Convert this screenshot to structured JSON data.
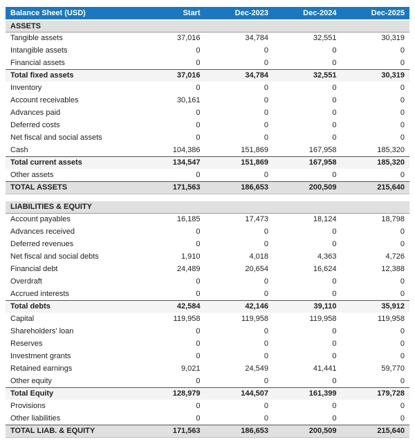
{
  "theme": {
    "header_bg": "#1a78c2",
    "header_text": "#ffffff",
    "section_bg": "#e0e0e0",
    "subtotal_bg": "#f4f4f4",
    "grandtotal_bg": "#e0e0e0",
    "body_text": "#212121",
    "total_border": "#555555"
  },
  "table": {
    "title": "Balance Sheet (USD)",
    "columns": [
      "Start",
      "Dec-2023",
      "Dec-2024",
      "Dec-2025"
    ],
    "sections": [
      {
        "name": "ASSETS",
        "rows": [
          {
            "label": "Tangible assets",
            "type": "item",
            "values": [
              "37,016",
              "34,784",
              "32,551",
              "30,319"
            ]
          },
          {
            "label": "Intangible assets",
            "type": "item",
            "values": [
              "0",
              "0",
              "0",
              "0"
            ]
          },
          {
            "label": "Financial assets",
            "type": "item",
            "values": [
              "0",
              "0",
              "0",
              "0"
            ]
          },
          {
            "label": "Total fixed assets",
            "type": "subtotal",
            "values": [
              "37,016",
              "34,784",
              "32,551",
              "30,319"
            ]
          },
          {
            "label": "Inventory",
            "type": "item",
            "values": [
              "0",
              "0",
              "0",
              "0"
            ]
          },
          {
            "label": "Account receivables",
            "type": "item",
            "values": [
              "30,161",
              "0",
              "0",
              "0"
            ]
          },
          {
            "label": "Advances paid",
            "type": "item",
            "values": [
              "0",
              "0",
              "0",
              "0"
            ]
          },
          {
            "label": "Deferred costs",
            "type": "item",
            "values": [
              "0",
              "0",
              "0",
              "0"
            ]
          },
          {
            "label": "Net fiscal and social assets",
            "type": "item",
            "values": [
              "0",
              "0",
              "0",
              "0"
            ]
          },
          {
            "label": "Cash",
            "type": "item",
            "values": [
              "104,386",
              "151,869",
              "167,958",
              "185,320"
            ]
          },
          {
            "label": "Total current assets",
            "type": "subtotal",
            "values": [
              "134,547",
              "151,869",
              "167,958",
              "185,320"
            ]
          },
          {
            "label": "Other assets",
            "type": "item",
            "values": [
              "0",
              "0",
              "0",
              "0"
            ]
          },
          {
            "label": "TOTAL ASSETS",
            "type": "grandtotal",
            "values": [
              "171,563",
              "186,653",
              "200,509",
              "215,640"
            ]
          }
        ]
      },
      {
        "name": "LIABILITIES & EQUITY",
        "rows": [
          {
            "label": "Account payables",
            "type": "item",
            "values": [
              "16,185",
              "17,473",
              "18,124",
              "18,798"
            ]
          },
          {
            "label": "Advances received",
            "type": "item",
            "values": [
              "0",
              "0",
              "0",
              "0"
            ]
          },
          {
            "label": "Deferred revenues",
            "type": "item",
            "values": [
              "0",
              "0",
              "0",
              "0"
            ]
          },
          {
            "label": "Net fiscal and social debts",
            "type": "item",
            "values": [
              "1,910",
              "4,018",
              "4,363",
              "4,726"
            ]
          },
          {
            "label": "Financial debt",
            "type": "item",
            "values": [
              "24,489",
              "20,654",
              "16,624",
              "12,388"
            ]
          },
          {
            "label": "Overdraft",
            "type": "item",
            "values": [
              "0",
              "0",
              "0",
              "0"
            ]
          },
          {
            "label": "Accrued interests",
            "type": "item",
            "values": [
              "0",
              "0",
              "0",
              "0"
            ]
          },
          {
            "label": "Total debts",
            "type": "subtotal",
            "values": [
              "42,584",
              "42,146",
              "39,110",
              "35,912"
            ]
          },
          {
            "label": "Capital",
            "type": "item",
            "values": [
              "119,958",
              "119,958",
              "119,958",
              "119,958"
            ]
          },
          {
            "label": "Shareholders' loan",
            "type": "item",
            "values": [
              "0",
              "0",
              "0",
              "0"
            ]
          },
          {
            "label": "Reserves",
            "type": "item",
            "values": [
              "0",
              "0",
              "0",
              "0"
            ]
          },
          {
            "label": "Investment grants",
            "type": "item",
            "values": [
              "0",
              "0",
              "0",
              "0"
            ]
          },
          {
            "label": "Retained earnings",
            "type": "item",
            "values": [
              "9,021",
              "24,549",
              "41,441",
              "59,770"
            ]
          },
          {
            "label": "Other equity",
            "type": "item",
            "values": [
              "0",
              "0",
              "0",
              "0"
            ]
          },
          {
            "label": "Total Equity",
            "type": "subtotal",
            "values": [
              "128,979",
              "144,507",
              "161,399",
              "179,728"
            ]
          },
          {
            "label": "Provisions",
            "type": "item",
            "values": [
              "0",
              "0",
              "0",
              "0"
            ]
          },
          {
            "label": "Other liabilities",
            "type": "item",
            "values": [
              "0",
              "0",
              "0",
              "0"
            ]
          },
          {
            "label": "TOTAL LIAB. & EQUITY",
            "type": "grandtotal",
            "values": [
              "171,563",
              "186,653",
              "200,509",
              "215,640"
            ]
          }
        ]
      }
    ]
  }
}
